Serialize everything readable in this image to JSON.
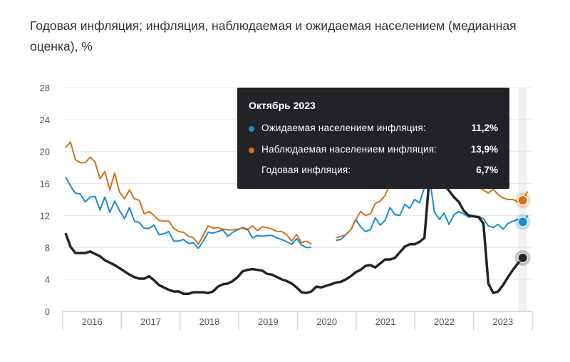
{
  "title": "Годовая инфляция; инфляция, наблюдаемая и ожидаемая населением (медианная оценка), %",
  "tooltip": {
    "title": "Октябрь 2023",
    "rows": [
      {
        "label": "Ожидаемая населением инфляция:",
        "value": "11,2%",
        "color": "#1a8ad4"
      },
      {
        "label": "Наблюдаемая населением инфляция:",
        "value": "13,9%",
        "color": "#d2701c"
      },
      {
        "label": "Годовая инфляция:",
        "value": "6,7%",
        "color": ""
      }
    ]
  },
  "chart_data": {
    "type": "line",
    "title": "Годовая инфляция; инфляция, наблюдаемая и ожидаемая населением (медианная оценка), %",
    "x_start": "2016-01",
    "x_frequency": "monthly",
    "x_tick_labels": [
      "2016",
      "2017",
      "2018",
      "2019",
      "2020",
      "2021",
      "2022",
      "2023"
    ],
    "y_ticks": [
      0,
      4,
      8,
      12,
      16,
      20,
      24,
      28
    ],
    "ylim": [
      0,
      28
    ],
    "grid": true,
    "highlight_index": 93,
    "series": [
      {
        "name": "Ожидаемая населением инфляция",
        "color": "#1a8ad4",
        "values": [
          16.8,
          15.7,
          14.8,
          14.7,
          13.7,
          14.3,
          14.4,
          12.7,
          14.3,
          12.4,
          13.8,
          12.6,
          11.6,
          13.0,
          11.3,
          11.1,
          10.4,
          10.4,
          10.8,
          9.6,
          9.7,
          10.0,
          8.8,
          8.8,
          9.0,
          8.5,
          8.6,
          7.9,
          8.8,
          9.9,
          9.8,
          10.0,
          10.2,
          9.4,
          9.9,
          10.2,
          10.5,
          10.3,
          9.2,
          9.5,
          9.4,
          9.5,
          9.5,
          9.2,
          9.0,
          8.7,
          8.4,
          9.1,
          8.3,
          8.0,
          8.0,
          null,
          null,
          null,
          null,
          8.9,
          9.0,
          9.6,
          10.2,
          11.5,
          10.6,
          10.0,
          10.2,
          11.7,
          10.8,
          11.4,
          13.0,
          12.1,
          12.0,
          13.4,
          12.9,
          14.0,
          13.6,
          15.5,
          17.0,
          12.5,
          11.5,
          12.3,
          10.9,
          12.1,
          12.5,
          12.2,
          11.8,
          11.9,
          11.9,
          11.6,
          10.7,
          10.5,
          10.9,
          10.3,
          11.0,
          11.3,
          11.5,
          11.2,
          12.0
        ]
      },
      {
        "name": "Наблюдаемая населением инфляция",
        "color": "#d2701c",
        "values": [
          20.5,
          21.2,
          19.0,
          18.6,
          18.6,
          19.3,
          18.7,
          16.6,
          17.5,
          15.2,
          17.3,
          14.9,
          14.1,
          15.2,
          14.1,
          13.9,
          12.2,
          12.5,
          12.0,
          11.4,
          11.3,
          11.3,
          10.4,
          10.0,
          9.9,
          9.4,
          9.2,
          8.4,
          9.5,
          10.7,
          10.4,
          10.5,
          10.3,
          10.2,
          10.2,
          10.3,
          10.4,
          10.2,
          10.7,
          10.1,
          10.6,
          10.5,
          10.3,
          10.0,
          10.0,
          9.6,
          8.8,
          9.6,
          8.6,
          8.8,
          8.4,
          null,
          null,
          null,
          null,
          9.2,
          9.4,
          9.6,
          10.2,
          11.4,
          12.5,
          12.0,
          12.2,
          13.5,
          13.8,
          14.5,
          16.0,
          16.5,
          16.8,
          17.5,
          17.5,
          18.0,
          18.0,
          20.0,
          24.0,
          21.0,
          19.0,
          18.0,
          17.0,
          16.5,
          16.0,
          15.5,
          16.0,
          15.8,
          15.5,
          15.2,
          14.8,
          15.3,
          14.6,
          14.2,
          14.0,
          14.0,
          13.7,
          13.9,
          15.0
        ]
      },
      {
        "name": "Годовая инфляция",
        "color": "#222326",
        "values": [
          9.8,
          8.1,
          7.3,
          7.3,
          7.3,
          7.5,
          7.2,
          6.9,
          6.4,
          6.1,
          5.8,
          5.4,
          5.0,
          4.6,
          4.3,
          4.1,
          4.1,
          4.4,
          3.9,
          3.3,
          3.0,
          2.7,
          2.5,
          2.5,
          2.2,
          2.2,
          2.4,
          2.4,
          2.4,
          2.3,
          2.5,
          3.1,
          3.4,
          3.5,
          3.8,
          4.3,
          5.0,
          5.2,
          5.3,
          5.2,
          5.1,
          4.7,
          4.6,
          4.3,
          4.0,
          3.8,
          3.5,
          3.0,
          2.4,
          2.3,
          2.5,
          3.1,
          3.0,
          3.2,
          3.4,
          3.6,
          3.7,
          4.0,
          4.4,
          4.9,
          5.2,
          5.7,
          5.8,
          5.5,
          6.0,
          6.5,
          6.5,
          6.7,
          7.4,
          8.1,
          8.4,
          8.4,
          8.7,
          9.2,
          16.7,
          17.8,
          17.1,
          15.9,
          15.1,
          14.3,
          13.7,
          12.6,
          12.0,
          11.9,
          11.8,
          11.0,
          3.5,
          2.3,
          2.5,
          3.3,
          4.3,
          5.2,
          6.0,
          6.7,
          null
        ]
      }
    ]
  }
}
